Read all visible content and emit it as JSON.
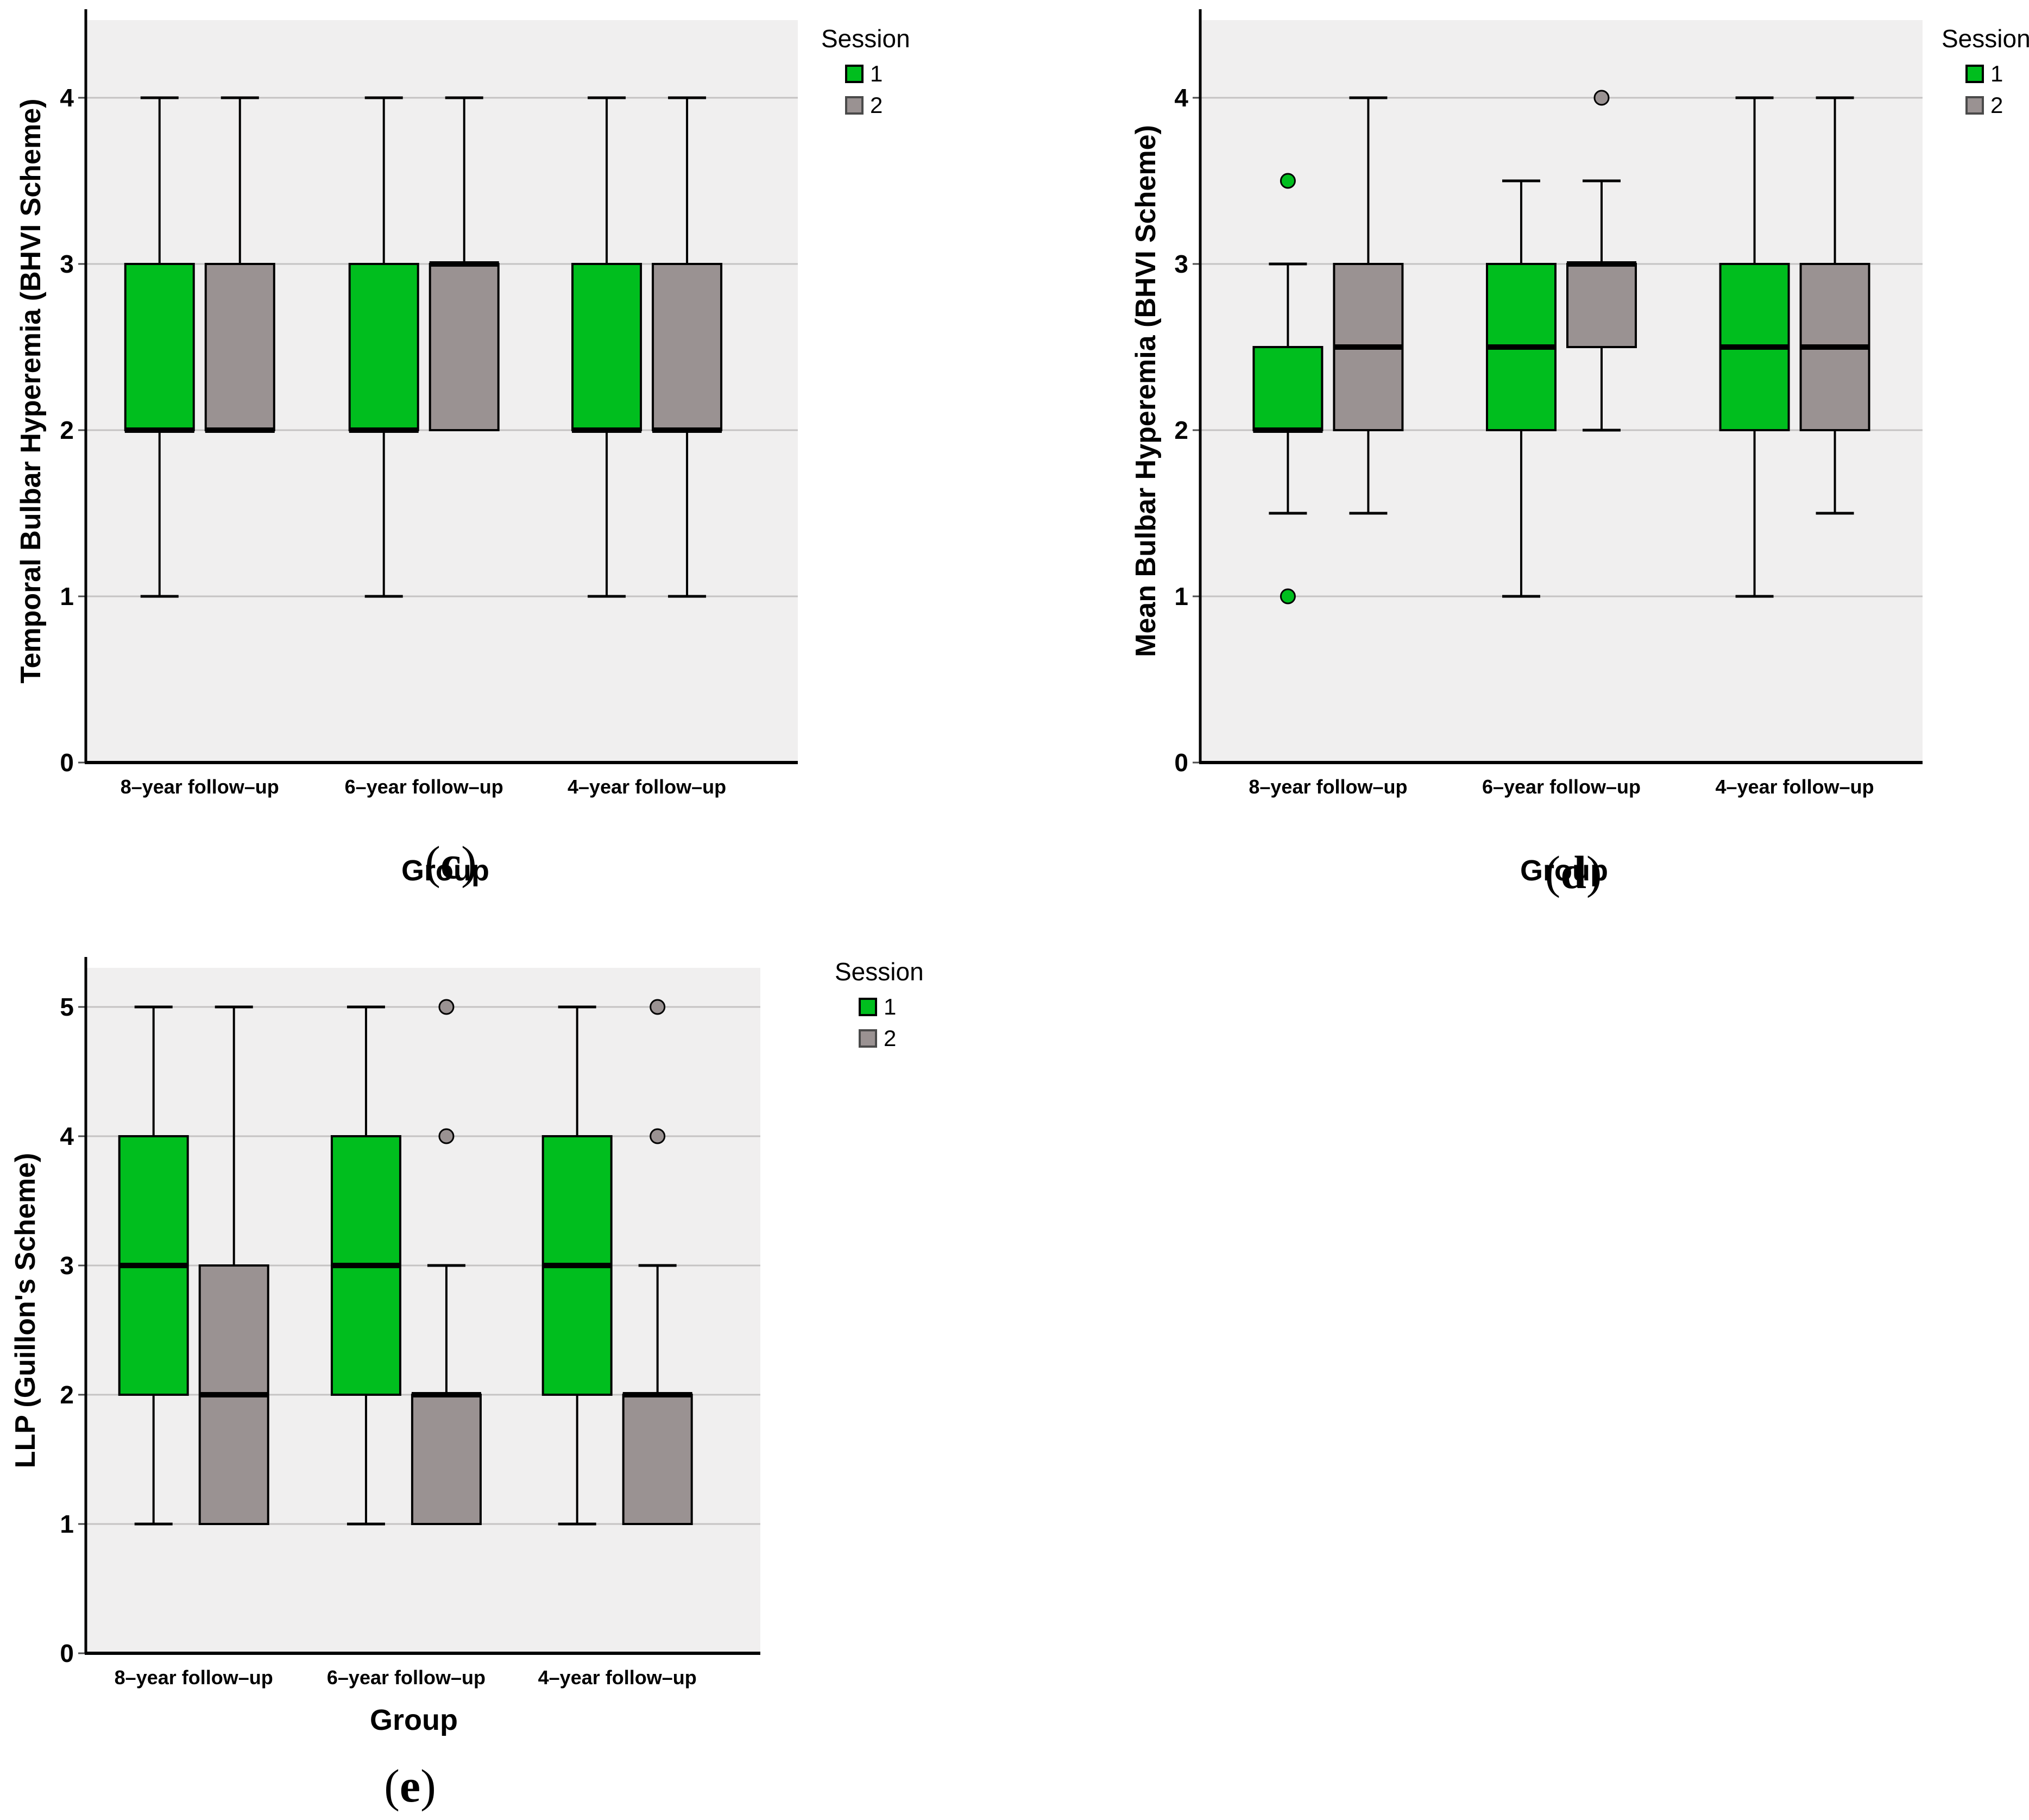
{
  "figure": {
    "colors": {
      "session1": "#00BE1E",
      "session2": "#9A9292",
      "panel_bg": "#F0EFEF",
      "gridline": "#C5C3C3",
      "axis": "#000000",
      "tick": "#4D4D4D",
      "box_border": "#000000",
      "median": "#000000",
      "outlier_border": "#000000",
      "legend_swatch_border_1": "#000000",
      "legend_swatch_border_2": "#4A4A4A",
      "background": "#FFFFFF"
    }
  },
  "chart_data": [
    {
      "id": "c",
      "type": "boxplot",
      "caption": {
        "open": "(",
        "letter": "c",
        "close": ")"
      },
      "ylabel": "Temporal Bulbar Hyperemia (BHVI Scheme)",
      "xlabel": "Group",
      "ylim": [
        0,
        4.47
      ],
      "yticks": [
        0,
        1,
        2,
        3,
        4
      ],
      "grid": true,
      "legend": {
        "title": "Session",
        "position": "top-right-outside",
        "items": [
          {
            "label": "1",
            "session": "session1"
          },
          {
            "label": "2",
            "session": "session2"
          }
        ]
      },
      "categories": [
        "8–year follow–up",
        "6–year follow–up",
        "4–year follow–up"
      ],
      "groups": [
        {
          "category": "8–year follow–up",
          "session1": {
            "whisker_low": 1,
            "q1": 2,
            "median": 2,
            "q3": 3,
            "whisker_high": 4,
            "outliers": []
          },
          "session2": {
            "whisker_low": 2,
            "q1": 2,
            "median": 2,
            "q3": 3,
            "whisker_high": 4,
            "outliers": []
          }
        },
        {
          "category": "6–year follow–up",
          "session1": {
            "whisker_low": 1,
            "q1": 2,
            "median": 2,
            "q3": 3,
            "whisker_high": 4,
            "outliers": []
          },
          "session2": {
            "whisker_low": 2,
            "q1": 2,
            "median": 3,
            "q3": 3,
            "whisker_high": 4,
            "outliers": []
          }
        },
        {
          "category": "4–year follow–up",
          "session1": {
            "whisker_low": 1,
            "q1": 2,
            "median": 2,
            "q3": 3,
            "whisker_high": 4,
            "outliers": []
          },
          "session2": {
            "whisker_low": 1,
            "q1": 2,
            "median": 2,
            "q3": 3,
            "whisker_high": 4,
            "outliers": []
          }
        }
      ]
    },
    {
      "id": "d",
      "type": "boxplot",
      "caption": {
        "open": "(",
        "letter": "d",
        "close": ")"
      },
      "ylabel": "Mean Bulbar Hyperemia (BHVI Scheme)",
      "xlabel": "Group",
      "ylim": [
        0,
        4.47
      ],
      "yticks": [
        0,
        1,
        2,
        3,
        4
      ],
      "grid": true,
      "legend": {
        "title": "Session",
        "position": "top-right-outside",
        "items": [
          {
            "label": "1",
            "session": "session1"
          },
          {
            "label": "2",
            "session": "session2"
          }
        ]
      },
      "categories": [
        "8–year follow–up",
        "6–year follow–up",
        "4–year follow–up"
      ],
      "groups": [
        {
          "category": "8–year follow–up",
          "session1": {
            "whisker_low": 1.5,
            "q1": 2,
            "median": 2,
            "q3": 2.5,
            "whisker_high": 3,
            "outliers": [
              3.5,
              1
            ]
          },
          "session2": {
            "whisker_low": 1.5,
            "q1": 2,
            "median": 2.5,
            "q3": 3,
            "whisker_high": 4,
            "outliers": []
          }
        },
        {
          "category": "6–year follow–up",
          "session1": {
            "whisker_low": 1,
            "q1": 2,
            "median": 2.5,
            "q3": 3,
            "whisker_high": 3.5,
            "outliers": []
          },
          "session2": {
            "whisker_low": 2,
            "q1": 2.5,
            "median": 3,
            "q3": 3,
            "whisker_high": 3.5,
            "outliers": [
              4
            ]
          }
        },
        {
          "category": "4–year follow–up",
          "session1": {
            "whisker_low": 1,
            "q1": 2,
            "median": 2.5,
            "q3": 3,
            "whisker_high": 4,
            "outliers": []
          },
          "session2": {
            "whisker_low": 1.5,
            "q1": 2,
            "median": 2.5,
            "q3": 3,
            "whisker_high": 4,
            "outliers": []
          }
        }
      ]
    },
    {
      "id": "e",
      "type": "boxplot",
      "caption": {
        "open": "(",
        "letter": "e",
        "close": ")"
      },
      "ylabel": "LLP (Guillon's Scheme)",
      "xlabel": "Group",
      "ylim": [
        0,
        5.3
      ],
      "yticks": [
        0,
        1,
        2,
        3,
        4,
        5
      ],
      "grid": true,
      "legend": {
        "title": "Session",
        "position": "top-right-outside",
        "items": [
          {
            "label": "1",
            "session": "session1"
          },
          {
            "label": "2",
            "session": "session2"
          }
        ]
      },
      "categories": [
        "8–year follow–up",
        "6–year follow–up",
        "4–year follow–up"
      ],
      "groups": [
        {
          "category": "8–year follow–up",
          "session1": {
            "whisker_low": 1,
            "q1": 2,
            "median": 3,
            "q3": 4,
            "whisker_high": 5,
            "outliers": []
          },
          "session2": {
            "whisker_low": 1,
            "q1": 1,
            "median": 2,
            "q3": 3,
            "whisker_high": 5,
            "outliers": []
          }
        },
        {
          "category": "6–year follow–up",
          "session1": {
            "whisker_low": 1,
            "q1": 2,
            "median": 3,
            "q3": 4,
            "whisker_high": 5,
            "outliers": []
          },
          "session2": {
            "whisker_low": 1,
            "q1": 1,
            "median": 2,
            "q3": 2,
            "whisker_high": 3,
            "outliers": [
              4,
              5
            ]
          }
        },
        {
          "category": "4–year follow–up",
          "session1": {
            "whisker_low": 1,
            "q1": 2,
            "median": 3,
            "q3": 4,
            "whisker_high": 5,
            "outliers": []
          },
          "session2": {
            "whisker_low": 1,
            "q1": 1,
            "median": 2,
            "q3": 2,
            "whisker_high": 3,
            "outliers": [
              4,
              5
            ]
          }
        }
      ]
    }
  ]
}
